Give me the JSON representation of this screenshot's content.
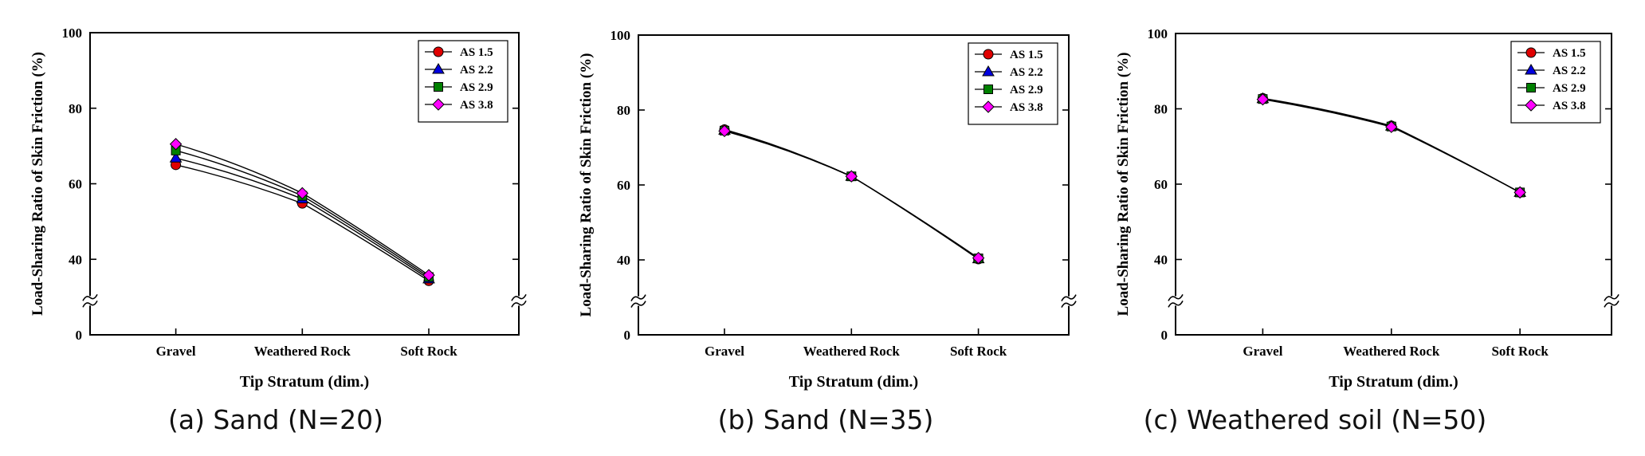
{
  "chart_data": [
    {
      "type": "line",
      "caption": "(a) Sand (N=20)",
      "xlabel": "Tip Stratum (dim.)",
      "ylabel": "Load-Sharing Ratio of Skin Friction (%)",
      "categories": [
        "Gravel",
        "Weathered Rock",
        "Soft Rock"
      ],
      "yticks": [
        0,
        40,
        60,
        80,
        100
      ],
      "ylim": [
        0,
        100
      ],
      "axis_break": true,
      "grid": false,
      "legend_position": "top-right",
      "series": [
        {
          "name": "AS 1.5",
          "marker": "circle",
          "color": "#e00000",
          "values": [
            65.0,
            54.8,
            34.3
          ]
        },
        {
          "name": "AS 2.2",
          "marker": "triangle",
          "color": "#0000e0",
          "values": [
            66.8,
            56.0,
            34.8
          ]
        },
        {
          "name": "AS 2.9",
          "marker": "square",
          "color": "#008000",
          "values": [
            68.8,
            56.8,
            35.3
          ]
        },
        {
          "name": "AS 3.8",
          "marker": "diamond",
          "color": "#ff00ff",
          "values": [
            70.5,
            57.5,
            35.8
          ]
        }
      ]
    },
    {
      "type": "line",
      "caption": "(b) Sand (N=35)",
      "xlabel": "Tip Stratum (dim.)",
      "ylabel": "Load-Sharing Ratio of Skin Friction (%)",
      "categories": [
        "Gravel",
        "Weathered Rock",
        "Soft Rock"
      ],
      "yticks": [
        0,
        40,
        60,
        80,
        100
      ],
      "ylim": [
        0,
        100
      ],
      "axis_break": true,
      "grid": false,
      "legend_position": "top-right",
      "series": [
        {
          "name": "AS 1.5",
          "marker": "circle",
          "color": "#e00000",
          "values": [
            74.8,
            62.3,
            40.2
          ]
        },
        {
          "name": "AS 2.2",
          "marker": "triangle",
          "color": "#0000e0",
          "values": [
            74.6,
            62.3,
            40.3
          ]
        },
        {
          "name": "AS 2.9",
          "marker": "square",
          "color": "#008000",
          "values": [
            74.5,
            62.3,
            40.4
          ]
        },
        {
          "name": "AS 3.8",
          "marker": "diamond",
          "color": "#ff00ff",
          "values": [
            74.4,
            62.3,
            40.5
          ]
        }
      ]
    },
    {
      "type": "line",
      "caption": "(c) Weathered soil (N=50)",
      "xlabel": "Tip Stratum (dim.)",
      "ylabel": "Load-Sharing Ratio of Skin Friction (%)",
      "categories": [
        "Gravel",
        "Weathered Rock",
        "Soft Rock"
      ],
      "yticks": [
        0,
        40,
        60,
        80,
        100
      ],
      "ylim": [
        0,
        100
      ],
      "axis_break": true,
      "grid": false,
      "legend_position": "top-right",
      "series": [
        {
          "name": "AS 1.5",
          "marker": "circle",
          "color": "#e00000",
          "values": [
            82.8,
            75.5,
            57.8
          ]
        },
        {
          "name": "AS 2.2",
          "marker": "triangle",
          "color": "#0000e0",
          "values": [
            82.7,
            75.4,
            57.8
          ]
        },
        {
          "name": "AS 2.9",
          "marker": "square",
          "color": "#008000",
          "values": [
            82.6,
            75.3,
            57.8
          ]
        },
        {
          "name": "AS 3.8",
          "marker": "diamond",
          "color": "#ff00ff",
          "values": [
            82.5,
            75.2,
            57.8
          ]
        }
      ]
    }
  ]
}
